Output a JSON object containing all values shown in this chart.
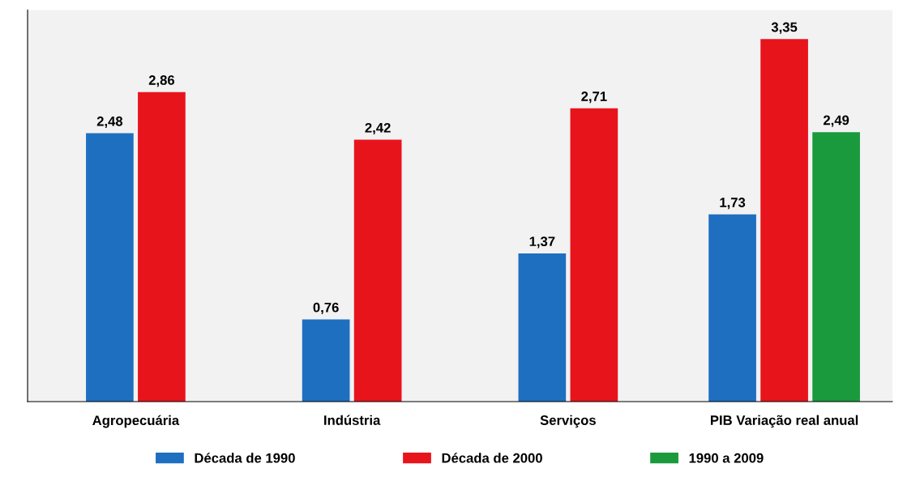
{
  "chart_data": {
    "type": "bar",
    "categories": [
      "Agropecuária",
      "Indústria",
      "Serviços",
      "PIB Variação real anual"
    ],
    "series": [
      {
        "name": "Década de 1990",
        "color": "#1f6fc0",
        "values": [
          2.48,
          0.76,
          1.37,
          1.73
        ],
        "value_labels": [
          "2,48",
          "0,76",
          "1,37",
          "1,73"
        ]
      },
      {
        "name": "Década de 2000",
        "color": "#e8141c",
        "values": [
          2.86,
          2.42,
          2.71,
          3.35
        ],
        "value_labels": [
          "2,86",
          "2,42",
          "2,71",
          "3,35"
        ]
      },
      {
        "name": "1990 a 2009",
        "color": "#1a9a3c",
        "values": [
          null,
          null,
          null,
          2.49
        ],
        "value_labels": [
          null,
          null,
          null,
          "2,49"
        ]
      }
    ],
    "grid": false,
    "legend": "bottom"
  }
}
